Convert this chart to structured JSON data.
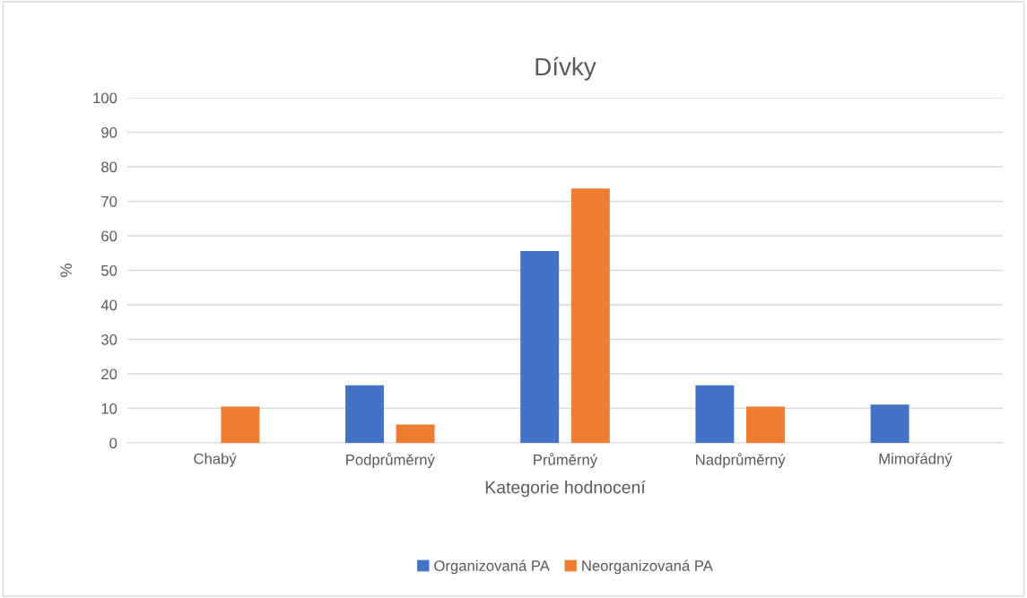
{
  "chart_data": {
    "type": "bar",
    "title": "Dívky",
    "xlabel": "Kategorie hodnocení",
    "ylabel": "%",
    "categories": [
      "Chabý",
      "Podprůměrný",
      "Průměrný",
      "Nadprůměrný",
      "Mimořádný"
    ],
    "series": [
      {
        "name": "Organizovaná PA",
        "color": "#4472c4",
        "values": [
          0,
          16.7,
          55.6,
          16.7,
          11.1
        ]
      },
      {
        "name": "Neorganizovaná PA",
        "color": "#ed7d31",
        "values": [
          10.5,
          5.3,
          73.7,
          10.5,
          0
        ]
      }
    ],
    "ylim": [
      0,
      100
    ],
    "yticks": [
      0,
      10,
      20,
      30,
      40,
      50,
      60,
      70,
      80,
      90,
      100
    ],
    "grid": "y",
    "legend": "bottom"
  }
}
